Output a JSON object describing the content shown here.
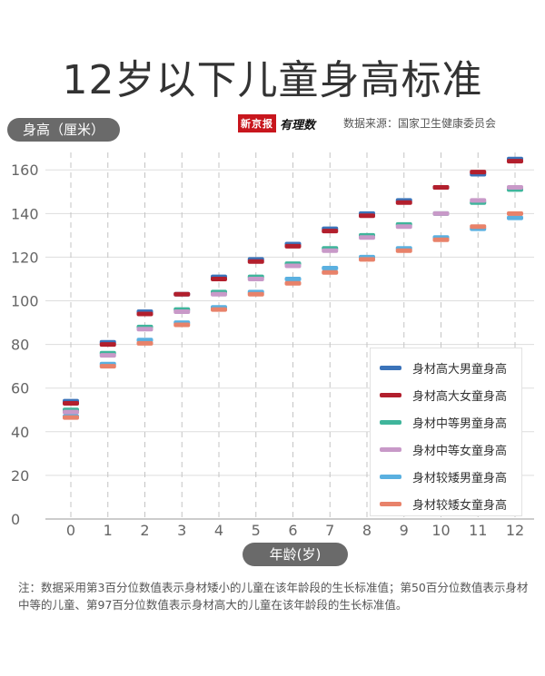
{
  "title": "12岁以下儿童身高标准",
  "y_axis_label": "身高（厘米）",
  "x_axis_label": "年龄(岁)",
  "logo": {
    "part1": "新京报",
    "part2": "有理数"
  },
  "source": "数据来源：国家卫生健康委员会",
  "note": "注：数据采用第3百分位数值表示身材矮小的儿童在该年龄段的生长标准值；第50百分位数值表示身材中等的儿童、第97百分位数值表示身材高大的儿童在该年龄段的生长标准值。",
  "chart_data": {
    "type": "scatter",
    "title": "12岁以下儿童身高标准",
    "xlabel": "年龄(岁)",
    "ylabel": "身高（厘米）",
    "ylim": [
      0,
      168
    ],
    "yticks": [
      0,
      20,
      40,
      60,
      80,
      100,
      120,
      140,
      160
    ],
    "x": [
      0,
      1,
      2,
      3,
      4,
      5,
      6,
      7,
      8,
      9,
      10,
      11,
      12
    ],
    "grid": true,
    "legend_position": "bottom-right",
    "series": [
      {
        "name": "身材高大男童身高",
        "color": "#3b73b9",
        "values": [
          54.0,
          81.0,
          95.0,
          103.0,
          111.0,
          119.0,
          126.0,
          133.0,
          140.0,
          146.0,
          152.0,
          158.0,
          165.0
        ]
      },
      {
        "name": "身材高大女童身高",
        "color": "#b21f2d",
        "values": [
          53.0,
          80.0,
          94.0,
          103.0,
          110.0,
          118.0,
          125.0,
          132.0,
          139.0,
          145.0,
          152.0,
          159.0,
          164.0
        ]
      },
      {
        "name": "身材中等男童身高",
        "color": "#3fb59b",
        "values": [
          50.0,
          76.0,
          88.0,
          96.0,
          104.0,
          111.0,
          117.0,
          124.0,
          130.0,
          135.0,
          140.0,
          145.0,
          151.0
        ]
      },
      {
        "name": "身材中等女童身高",
        "color": "#c899c8",
        "values": [
          49.0,
          75.0,
          87.0,
          95.0,
          103.0,
          110.0,
          116.0,
          123.0,
          129.0,
          134.0,
          140.0,
          146.0,
          152.0
        ]
      },
      {
        "name": "身材较矮男童身高",
        "color": "#5ab0e0",
        "values": [
          47.0,
          71.0,
          82.0,
          90.0,
          97.0,
          104.0,
          110.0,
          115.0,
          120.0,
          124.0,
          129.0,
          133.0,
          138.0
        ]
      },
      {
        "name": "身材较矮女童身高",
        "color": "#e8826a",
        "values": [
          46.5,
          70.0,
          80.5,
          89.0,
          96.0,
          103.0,
          108.0,
          113.0,
          119.0,
          123.0,
          128.0,
          134.0,
          140.0
        ]
      }
    ]
  }
}
